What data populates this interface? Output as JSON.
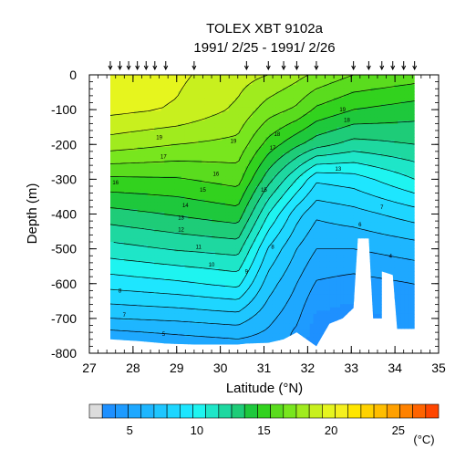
{
  "chart_data": {
    "type": "heatmap",
    "title": "TOLEX XBT 9102a",
    "subtitle": "1991/ 2/25 - 1991/ 2/26",
    "xlabel": "Latitude (°N)",
    "ylabel": "Depth (m)",
    "xlim": [
      27,
      35
    ],
    "ylim": [
      -800,
      0
    ],
    "x_ticks": [
      "27",
      "28",
      "29",
      "30",
      "31",
      "32",
      "33",
      "34",
      "35"
    ],
    "y_ticks": [
      "0",
      "-100",
      "-200",
      "-300",
      "-400",
      "-500",
      "-600",
      "-700",
      "-800"
    ],
    "station_latitudes": [
      27.48,
      27.7,
      27.9,
      28.1,
      28.3,
      28.5,
      28.75,
      29.4,
      30.6,
      31.1,
      31.45,
      31.75,
      32.2,
      33.05,
      33.4,
      33.7,
      33.95,
      34.2,
      34.45
    ],
    "colorbar": {
      "unit": "(°C)",
      "tick_labels": [
        "5",
        "10",
        "15",
        "20",
        "25"
      ],
      "tick_values": [
        5,
        10,
        15,
        20,
        25
      ],
      "levels": [
        2,
        3,
        4,
        5,
        6,
        7,
        8,
        9,
        10,
        11,
        12,
        13,
        14,
        15,
        16,
        17,
        18,
        19,
        20,
        21,
        22,
        23,
        24,
        25,
        26,
        27,
        28
      ],
      "colors": [
        "#dcdcdc",
        "#1e90ff",
        "#1e9bff",
        "#1ea8ff",
        "#1eb6ff",
        "#1ec6ff",
        "#1ed6ff",
        "#1ee6ff",
        "#1ef4f0",
        "#1ee6c8",
        "#1ed8a0",
        "#1ecc78",
        "#1ec83c",
        "#32d21e",
        "#5adc1e",
        "#78e61e",
        "#a0eb1e",
        "#c8f01e",
        "#e6f51e",
        "#f5f01e",
        "#ffe600",
        "#ffd200",
        "#ffbe00",
        "#ffa000",
        "#ff8200",
        "#ff6400",
        "#ff4600"
      ]
    },
    "temperature_profiles": [
      {
        "lat": 27.48,
        "depths": [
          0,
          100,
          200,
          300,
          400,
          500,
          600,
          700,
          760
        ],
        "temps": [
          20.5,
          20.3,
          18.5,
          15.8,
          13.6,
          11.6,
          9.4,
          7.0,
          5.2
        ]
      },
      {
        "lat": 29.0,
        "depths": [
          0,
          100,
          200,
          300,
          400,
          500,
          600,
          700,
          770
        ],
        "temps": [
          20.2,
          19.9,
          18.0,
          15.9,
          14.1,
          12.1,
          9.8,
          7.2,
          5.4
        ]
      },
      {
        "lat": 30.4,
        "depths": [
          0,
          100,
          200,
          300,
          400,
          500,
          600,
          700,
          775
        ],
        "temps": [
          19.4,
          18.8,
          17.7,
          16.4,
          14.6,
          12.4,
          10.3,
          7.5,
          5.6
        ]
      },
      {
        "lat": 31.1,
        "depths": [
          0,
          100,
          200,
          300,
          400,
          500,
          600,
          700,
          770
        ],
        "temps": [
          19.0,
          17.5,
          15.6,
          13.4,
          11.0,
          8.9,
          7.5,
          6.3,
          5.5
        ]
      },
      {
        "lat": 31.75,
        "depths": [
          0,
          100,
          200,
          300,
          400,
          500,
          600,
          700,
          740
        ],
        "temps": [
          18.3,
          16.8,
          14.2,
          11.0,
          8.4,
          7.0,
          6.0,
          5.2,
          4.8
        ]
      },
      {
        "lat": 32.2,
        "depths": [
          0,
          100,
          200,
          300,
          400,
          500,
          600,
          700,
          780
        ],
        "temps": [
          17.8,
          15.8,
          13.4,
          9.2,
          7.2,
          6.0,
          4.9,
          3.8,
          3.2
        ]
      },
      {
        "lat": 33.05,
        "depths": [
          0,
          100,
          200,
          300,
          400,
          500,
          600,
          700
        ],
        "temps": [
          17.0,
          15.0,
          12.6,
          9.5,
          7.6,
          6.0,
          4.6,
          3.5
        ]
      },
      {
        "lat": 34.45,
        "depths": [
          0,
          100,
          200,
          300,
          400,
          500,
          600,
          700,
          730
        ],
        "temps": [
          16.5,
          14.5,
          13.0,
          11.0,
          8.5,
          6.5,
          5.0,
          4.5,
          4.4
        ]
      }
    ],
    "bottom_depths": [
      {
        "lat": 27.48,
        "depth": 760
      },
      {
        "lat": 28.1,
        "depth": 765
      },
      {
        "lat": 28.75,
        "depth": 772
      },
      {
        "lat": 29.4,
        "depth": 775
      },
      {
        "lat": 30.0,
        "depth": 775
      },
      {
        "lat": 30.4,
        "depth": 775
      },
      {
        "lat": 30.6,
        "depth": 772
      },
      {
        "lat": 31.1,
        "depth": 770
      },
      {
        "lat": 31.45,
        "depth": 760
      },
      {
        "lat": 31.75,
        "depth": 740
      },
      {
        "lat": 32.2,
        "depth": 780
      },
      {
        "lat": 32.5,
        "depth": 715
      },
      {
        "lat": 32.8,
        "depth": 700
      },
      {
        "lat": 33.05,
        "depth": 670
      },
      {
        "lat": 33.15,
        "depth": 470
      },
      {
        "lat": 33.4,
        "depth": 470
      },
      {
        "lat": 33.5,
        "depth": 700
      },
      {
        "lat": 33.7,
        "depth": 700
      },
      {
        "lat": 33.7,
        "depth": 565
      },
      {
        "lat": 33.95,
        "depth": 575
      },
      {
        "lat": 34.05,
        "depth": 730
      },
      {
        "lat": 34.45,
        "depth": 730
      }
    ],
    "contour_labels": [
      {
        "text": "19",
        "lat": 28.6,
        "depth": 180
      },
      {
        "text": "19",
        "lat": 30.3,
        "depth": 190
      },
      {
        "text": "19",
        "lat": 32.8,
        "depth": 100
      },
      {
        "text": "18",
        "lat": 31.3,
        "depth": 170
      },
      {
        "text": "18",
        "lat": 32.9,
        "depth": 130
      },
      {
        "text": "17",
        "lat": 28.7,
        "depth": 235
      },
      {
        "text": "17",
        "lat": 31.2,
        "depth": 210
      },
      {
        "text": "16",
        "lat": 27.6,
        "depth": 310
      },
      {
        "text": "16",
        "lat": 29.9,
        "depth": 285
      },
      {
        "text": "15",
        "lat": 29.6,
        "depth": 330
      },
      {
        "text": "15",
        "lat": 31.0,
        "depth": 330
      },
      {
        "text": "14",
        "lat": 29.2,
        "depth": 375
      },
      {
        "text": "13",
        "lat": 29.1,
        "depth": 410
      },
      {
        "text": "13",
        "lat": 32.7,
        "depth": 270
      },
      {
        "text": "12",
        "lat": 29.1,
        "depth": 445
      },
      {
        "text": "11",
        "lat": 29.5,
        "depth": 495
      },
      {
        "text": "10",
        "lat": 29.8,
        "depth": 545
      },
      {
        "text": "9",
        "lat": 30.6,
        "depth": 565
      },
      {
        "text": "8",
        "lat": 27.7,
        "depth": 620
      },
      {
        "text": "8",
        "lat": 31.2,
        "depth": 495
      },
      {
        "text": "7",
        "lat": 27.8,
        "depth": 690
      },
      {
        "text": "7",
        "lat": 33.7,
        "depth": 380
      },
      {
        "text": "6",
        "lat": 33.2,
        "depth": 430
      },
      {
        "text": "5",
        "lat": 28.7,
        "depth": 745
      },
      {
        "text": "4",
        "lat": 33.9,
        "depth": 520
      }
    ]
  }
}
